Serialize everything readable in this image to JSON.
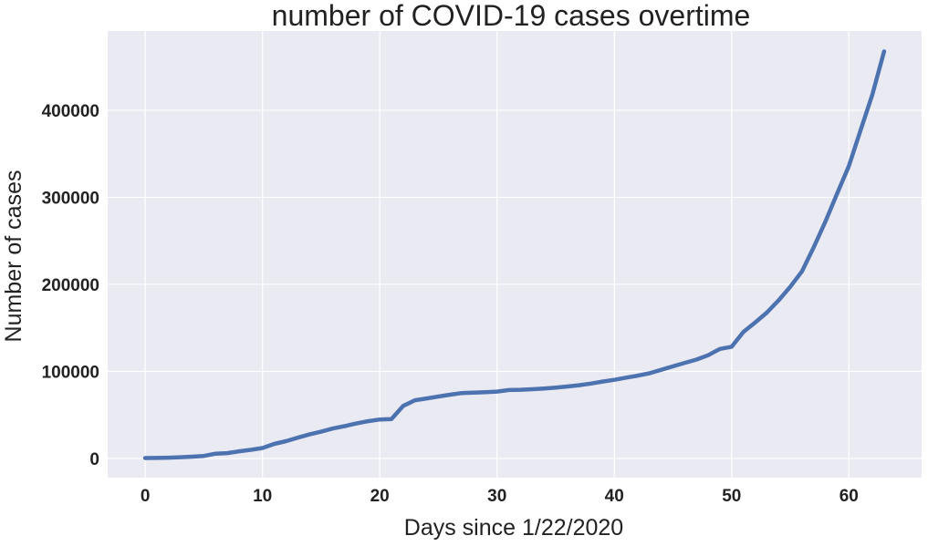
{
  "chart_data": {
    "type": "line",
    "title": "number of COVID-19 cases overtime",
    "xlabel": "Days since 1/22/2020",
    "ylabel": "Number of cases",
    "xlim": [
      -3.2,
      66.2
    ],
    "ylim": [
      -22000,
      491000
    ],
    "grid": true,
    "x_ticks": [
      0,
      10,
      20,
      30,
      40,
      50,
      60
    ],
    "x_tick_labels": [
      "0",
      "10",
      "20",
      "30",
      "40",
      "50",
      "60"
    ],
    "y_ticks": [
      0,
      100000,
      200000,
      300000,
      400000
    ],
    "y_tick_labels": [
      "0",
      "100000",
      "200000",
      "300000",
      "400000"
    ],
    "colors": {
      "line": "#4c72b0",
      "plot_background": "#eaeaf2",
      "grid": "#ffffff"
    },
    "series": [
      {
        "x": [
          0,
          1,
          2,
          3,
          4,
          5,
          6,
          7,
          8,
          9,
          10,
          11,
          12,
          13,
          14,
          15,
          16,
          17,
          18,
          19,
          20,
          21,
          22,
          23,
          24,
          25,
          26,
          27,
          28,
          29,
          30,
          31,
          32,
          33,
          34,
          35,
          36,
          37,
          38,
          39,
          40,
          41,
          42,
          43,
          44,
          45,
          46,
          47,
          48,
          49,
          50,
          51,
          52,
          53,
          54,
          55,
          56,
          57,
          58,
          59,
          60,
          61,
          62,
          63
        ],
        "values": [
          555,
          654,
          941,
          1434,
          2118,
          2927,
          5578,
          6166,
          8234,
          9927,
          12038,
          16787,
          19881,
          23892,
          27635,
          30794,
          34391,
          37120,
          40150,
          42762,
          44802,
          45221,
          60368,
          66885,
          69030,
          71224,
          73258,
          75136,
          75639,
          76197,
          76819,
          78572,
          78958,
          79561,
          80406,
          81388,
          82746,
          84112,
          86011,
          88369,
          90306,
          92840,
          95120,
          97886,
          101801,
          105847,
          109821,
          113590,
          118620,
          125875,
          128343,
          145193,
          156097,
          167449,
          181546,
          197142,
          214910,
          242708,
          272166,
          304524,
          335955,
          377262,
          417966,
          467594
        ]
      }
    ]
  }
}
